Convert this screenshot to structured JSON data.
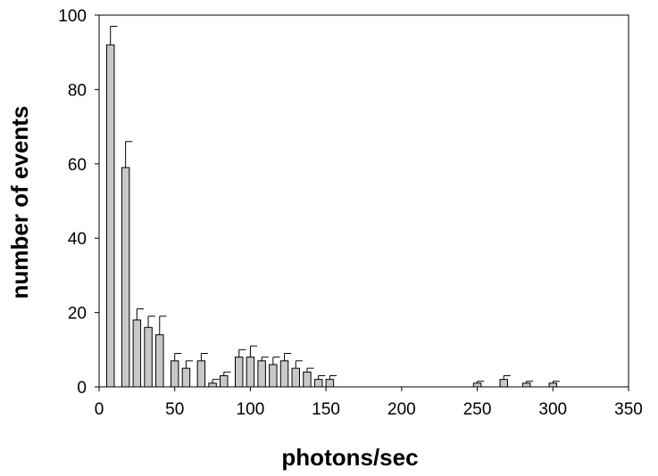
{
  "chart_data": {
    "type": "bar",
    "xlabel": "photons/sec",
    "ylabel": "number of events",
    "xlim": [
      0,
      350
    ],
    "ylim": [
      0,
      100
    ],
    "x_ticks": [
      0,
      50,
      100,
      150,
      200,
      250,
      300,
      350
    ],
    "y_ticks": [
      0,
      20,
      40,
      60,
      80,
      100
    ],
    "bar_width": 5,
    "grid": false,
    "legend": "none",
    "series": [
      {
        "x": [
          7.5,
          17.5,
          25,
          32.5,
          40,
          50,
          57.5,
          67.5,
          75,
          82.5,
          92.5,
          100,
          107.5,
          115,
          122.5,
          130,
          137.5,
          145,
          152.5,
          250,
          267.5,
          282.5,
          300
        ],
        "values": [
          92,
          59,
          18,
          16,
          14,
          7,
          5,
          7,
          1,
          3,
          8,
          8,
          7,
          6,
          7,
          5,
          4,
          2,
          2,
          1,
          2,
          1,
          1
        ],
        "errors": [
          5,
          7,
          3,
          3,
          5,
          2,
          2,
          2,
          1,
          1,
          2,
          3,
          1,
          2,
          2,
          2,
          1,
          1,
          1,
          0.5,
          1,
          0.5,
          0.5
        ]
      }
    ]
  }
}
